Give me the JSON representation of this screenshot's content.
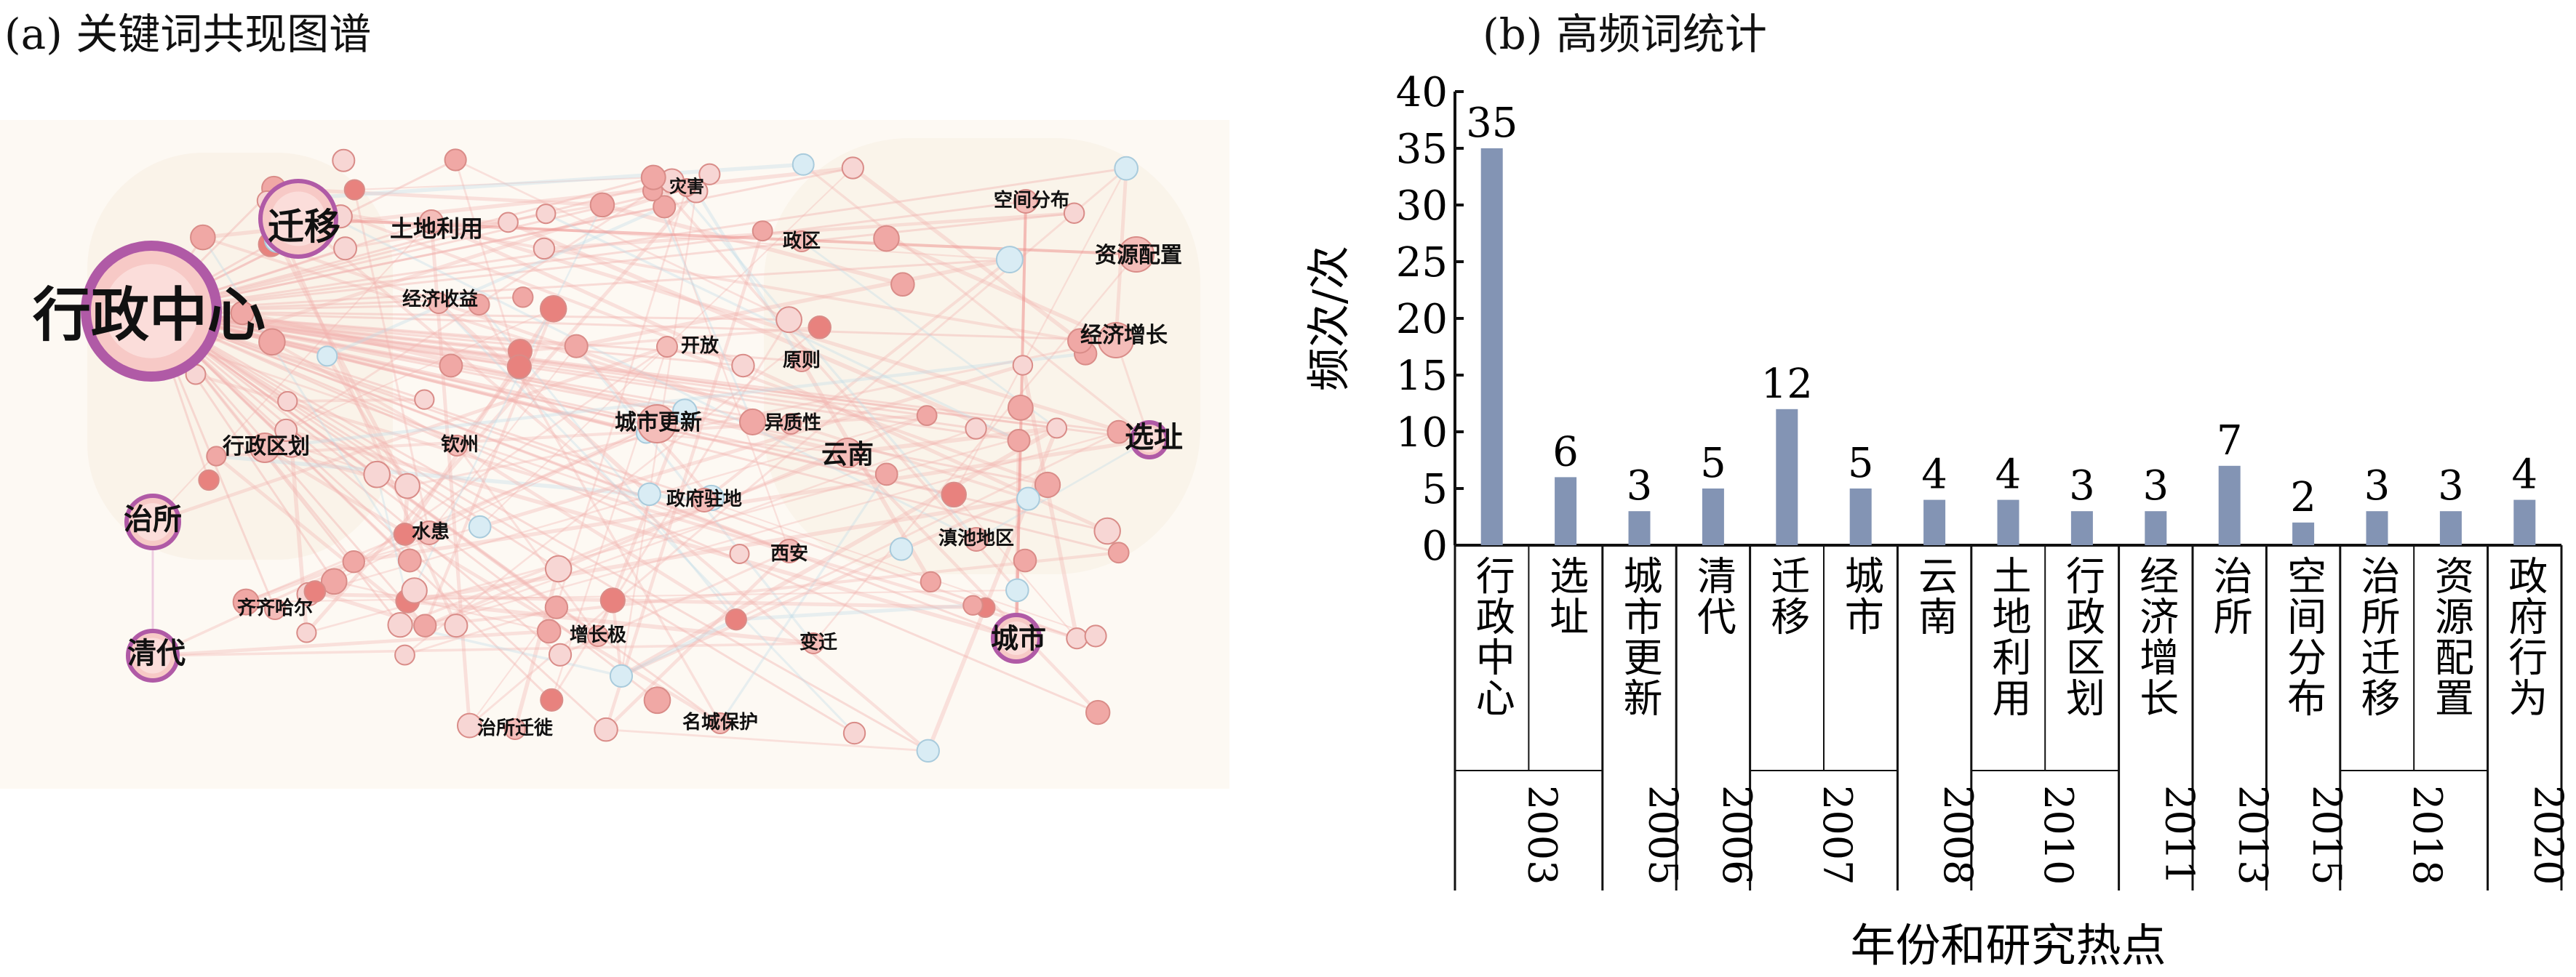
{
  "panel_a": {
    "title": "(a) 关键词共现图谱",
    "nodes": [
      {
        "label": "行政中心",
        "kind": "major"
      },
      {
        "label": "迁移",
        "kind": "major"
      },
      {
        "label": "土地利用",
        "kind": "label"
      },
      {
        "label": "经济收益",
        "kind": "label"
      },
      {
        "label": "灾害",
        "kind": "label"
      },
      {
        "label": "政区",
        "kind": "label"
      },
      {
        "label": "空间分布",
        "kind": "label"
      },
      {
        "label": "资源配置",
        "kind": "label"
      },
      {
        "label": "经济增长",
        "kind": "label"
      },
      {
        "label": "开放",
        "kind": "label"
      },
      {
        "label": "原则",
        "kind": "label"
      },
      {
        "label": "城市更新",
        "kind": "label"
      },
      {
        "label": "异质性",
        "kind": "label"
      },
      {
        "label": "云南",
        "kind": "label"
      },
      {
        "label": "选址",
        "kind": "major"
      },
      {
        "label": "行政区划",
        "kind": "label"
      },
      {
        "label": "钦州",
        "kind": "label"
      },
      {
        "label": "治所",
        "kind": "major"
      },
      {
        "label": "政府驻地",
        "kind": "label"
      },
      {
        "label": "水患",
        "kind": "label"
      },
      {
        "label": "西安",
        "kind": "label"
      },
      {
        "label": "滇池地区",
        "kind": "label"
      },
      {
        "label": "齐齐哈尔",
        "kind": "label"
      },
      {
        "label": "清代",
        "kind": "major"
      },
      {
        "label": "增长极",
        "kind": "label"
      },
      {
        "label": "变迁",
        "kind": "label"
      },
      {
        "label": "城市",
        "kind": "major"
      },
      {
        "label": "治所迁徙",
        "kind": "label"
      },
      {
        "label": "名城保护",
        "kind": "label"
      }
    ]
  },
  "panel_b": {
    "title": "(b) 高频词统计",
    "ylabel": "频次/次",
    "xlabel": "年份和研究热点"
  },
  "chart_data": [
    {
      "type": "network",
      "title": "(a) 关键词共现图谱",
      "nodes": [
        "行政中心",
        "迁移",
        "土地利用",
        "经济收益",
        "灾害",
        "政区",
        "空间分布",
        "资源配置",
        "经济增长",
        "开放",
        "原则",
        "城市更新",
        "异质性",
        "云南",
        "选址",
        "行政区划",
        "钦州",
        "治所",
        "政府驻地",
        "水患",
        "西安",
        "滇池地区",
        "齐齐哈尔",
        "清代",
        "增长极",
        "变迁",
        "城市",
        "治所迁徙",
        "名城保护"
      ]
    },
    {
      "type": "bar",
      "title": "(b) 高频词统计",
      "ylabel": "频次/次",
      "xlabel": "年份和研究热点",
      "ylim": [
        0,
        40
      ],
      "yticks": [
        0,
        5,
        10,
        15,
        20,
        25,
        30,
        35,
        40
      ],
      "categories": [
        "行政中心",
        "选址",
        "城市更新",
        "清代",
        "迁移",
        "城市",
        "云南",
        "土地利用",
        "行政区划",
        "经济增长",
        "治所",
        "空间分布",
        "治所迁移",
        "资源配置",
        "政府行为"
      ],
      "values": [
        35,
        6,
        3,
        5,
        12,
        5,
        4,
        4,
        3,
        3,
        7,
        2,
        3,
        3,
        4
      ],
      "year_groups": [
        {
          "year": "2003",
          "count": 2
        },
        {
          "year": "2005",
          "count": 1
        },
        {
          "year": "2006",
          "count": 1
        },
        {
          "year": "2007",
          "count": 2
        },
        {
          "year": "2008",
          "count": 1
        },
        {
          "year": "2010",
          "count": 2
        },
        {
          "year": "2011",
          "count": 1
        },
        {
          "year": "2013",
          "count": 1
        },
        {
          "year": "2015",
          "count": 1
        },
        {
          "year": "2018",
          "count": 2
        },
        {
          "year": "2020",
          "count": 1
        }
      ],
      "bar_color": "#8394b4",
      "grid": false
    }
  ]
}
